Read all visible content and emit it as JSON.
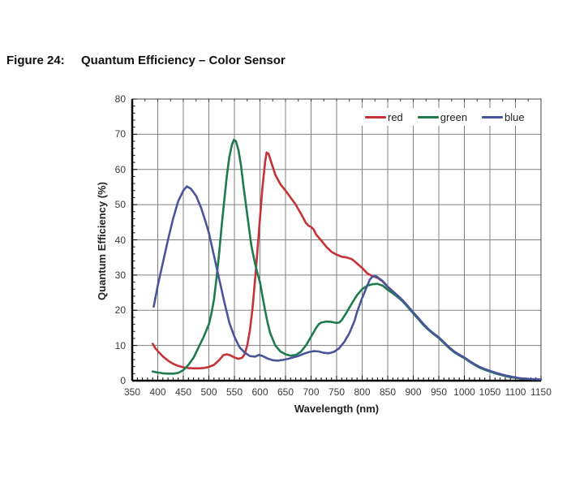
{
  "figure": {
    "label": "Figure 24:",
    "title": "Quantum Efficiency – Color Sensor"
  },
  "chart_data": {
    "type": "line",
    "title": "Quantum Efficiency – Color Sensor",
    "xlabel": "Wavelength (nm)",
    "ylabel": "Quantum Efficiency (%)",
    "xlim": [
      350,
      1150
    ],
    "ylim": [
      0,
      80
    ],
    "x_ticks": [
      350,
      400,
      450,
      500,
      550,
      600,
      650,
      700,
      750,
      800,
      850,
      900,
      950,
      1000,
      1050,
      1100,
      1150
    ],
    "y_ticks": [
      0,
      10,
      20,
      30,
      40,
      50,
      60,
      70,
      80
    ],
    "grid": true,
    "grid_color": "#808080",
    "legend_position": "top-right-inside",
    "series": [
      {
        "name": "red",
        "color": "#c53238",
        "points": [
          [
            390,
            10.5
          ],
          [
            395,
            9.3
          ],
          [
            400,
            8.4
          ],
          [
            410,
            6.9
          ],
          [
            420,
            5.7
          ],
          [
            430,
            4.8
          ],
          [
            440,
            4.2
          ],
          [
            450,
            3.8
          ],
          [
            460,
            3.6
          ],
          [
            470,
            3.5
          ],
          [
            480,
            3.5
          ],
          [
            490,
            3.6
          ],
          [
            500,
            3.9
          ],
          [
            510,
            4.5
          ],
          [
            520,
            5.8
          ],
          [
            528,
            7.2
          ],
          [
            535,
            7.5
          ],
          [
            542,
            7.2
          ],
          [
            550,
            6.6
          ],
          [
            558,
            6.2
          ],
          [
            565,
            6.5
          ],
          [
            570,
            7.5
          ],
          [
            575,
            10
          ],
          [
            580,
            14
          ],
          [
            585,
            20
          ],
          [
            590,
            28
          ],
          [
            595,
            37
          ],
          [
            600,
            46
          ],
          [
            605,
            55
          ],
          [
            610,
            62
          ],
          [
            613,
            64.8
          ],
          [
            617,
            64.4
          ],
          [
            620,
            63
          ],
          [
            630,
            58.5
          ],
          [
            640,
            55.8
          ],
          [
            650,
            54
          ],
          [
            660,
            52
          ],
          [
            670,
            50
          ],
          [
            680,
            47.5
          ],
          [
            690,
            44.8
          ],
          [
            695,
            44
          ],
          [
            700,
            43.7
          ],
          [
            705,
            43
          ],
          [
            710,
            41.5
          ],
          [
            720,
            39.8
          ],
          [
            730,
            38
          ],
          [
            740,
            36.6
          ],
          [
            750,
            35.8
          ],
          [
            760,
            35.2
          ],
          [
            770,
            35
          ],
          [
            780,
            34.5
          ],
          [
            790,
            33.3
          ],
          [
            800,
            32
          ],
          [
            810,
            30.5
          ],
          [
            820,
            29.7
          ],
          [
            830,
            29.2
          ],
          [
            840,
            28.2
          ],
          [
            850,
            26.6
          ],
          [
            860,
            25.3
          ],
          [
            870,
            24
          ],
          [
            880,
            22.6
          ],
          [
            890,
            21
          ],
          [
            900,
            19.3
          ],
          [
            910,
            17.7
          ],
          [
            920,
            16
          ],
          [
            930,
            14.5
          ],
          [
            940,
            13.3
          ],
          [
            950,
            12.2
          ],
          [
            960,
            10.8
          ],
          [
            970,
            9.4
          ],
          [
            980,
            8.2
          ],
          [
            990,
            7.3
          ],
          [
            1000,
            6.5
          ],
          [
            1010,
            5.5
          ],
          [
            1020,
            4.6
          ],
          [
            1030,
            3.8
          ],
          [
            1040,
            3.2
          ],
          [
            1050,
            2.7
          ],
          [
            1060,
            2.2
          ],
          [
            1070,
            1.8
          ],
          [
            1080,
            1.4
          ],
          [
            1090,
            1.1
          ],
          [
            1100,
            0.8
          ],
          [
            1110,
            0.6
          ],
          [
            1120,
            0.5
          ]
        ]
      },
      {
        "name": "green",
        "color": "#1e7b4e",
        "points": [
          [
            390,
            2.6
          ],
          [
            400,
            2.3
          ],
          [
            410,
            2.1
          ],
          [
            420,
            2.0
          ],
          [
            430,
            2.0
          ],
          [
            440,
            2.2
          ],
          [
            450,
            3.0
          ],
          [
            460,
            4.5
          ],
          [
            470,
            6.5
          ],
          [
            480,
            9.5
          ],
          [
            490,
            12.5
          ],
          [
            500,
            16
          ],
          [
            505,
            19
          ],
          [
            510,
            23
          ],
          [
            515,
            29
          ],
          [
            520,
            36
          ],
          [
            525,
            44
          ],
          [
            530,
            51
          ],
          [
            535,
            58
          ],
          [
            540,
            63.5
          ],
          [
            545,
            67
          ],
          [
            549,
            68.4
          ],
          [
            553,
            68
          ],
          [
            558,
            65.5
          ],
          [
            563,
            61
          ],
          [
            568,
            55
          ],
          [
            573,
            49.5
          ],
          [
            578,
            44
          ],
          [
            583,
            38.5
          ],
          [
            590,
            33.5
          ],
          [
            595,
            30.5
          ],
          [
            600,
            28
          ],
          [
            605,
            24
          ],
          [
            610,
            20
          ],
          [
            615,
            16.5
          ],
          [
            620,
            13.5
          ],
          [
            630,
            10
          ],
          [
            640,
            8.3
          ],
          [
            650,
            7.5
          ],
          [
            660,
            7.1
          ],
          [
            670,
            7.3
          ],
          [
            680,
            8.2
          ],
          [
            690,
            10
          ],
          [
            700,
            12.5
          ],
          [
            710,
            15
          ],
          [
            715,
            16
          ],
          [
            720,
            16.5
          ],
          [
            730,
            16.8
          ],
          [
            740,
            16.7
          ],
          [
            750,
            16.4
          ],
          [
            755,
            16.5
          ],
          [
            760,
            17.2
          ],
          [
            770,
            19.5
          ],
          [
            780,
            22
          ],
          [
            790,
            24.3
          ],
          [
            800,
            26
          ],
          [
            810,
            27
          ],
          [
            820,
            27.4
          ],
          [
            830,
            27.5
          ],
          [
            840,
            27
          ],
          [
            850,
            25.8
          ],
          [
            860,
            24.8
          ],
          [
            870,
            23.7
          ],
          [
            880,
            22.4
          ],
          [
            890,
            20.8
          ],
          [
            900,
            19.1
          ],
          [
            910,
            17.5
          ],
          [
            920,
            15.8
          ],
          [
            930,
            14.4
          ],
          [
            940,
            13.2
          ],
          [
            950,
            12.1
          ],
          [
            960,
            10.7
          ],
          [
            970,
            9.3
          ],
          [
            980,
            8.1
          ],
          [
            990,
            7.2
          ],
          [
            1000,
            6.4
          ],
          [
            1010,
            5.4
          ],
          [
            1020,
            4.5
          ],
          [
            1030,
            3.7
          ],
          [
            1040,
            3.1
          ],
          [
            1050,
            2.6
          ],
          [
            1060,
            2.1
          ],
          [
            1070,
            1.7
          ],
          [
            1080,
            1.3
          ],
          [
            1090,
            1.0
          ],
          [
            1100,
            0.8
          ],
          [
            1110,
            0.6
          ],
          [
            1120,
            0.5
          ]
        ]
      },
      {
        "name": "blue",
        "color": "#4a549b",
        "points": [
          [
            392,
            21
          ],
          [
            400,
            27
          ],
          [
            410,
            33.5
          ],
          [
            420,
            40
          ],
          [
            430,
            46
          ],
          [
            440,
            51
          ],
          [
            450,
            54
          ],
          [
            457,
            55.2
          ],
          [
            465,
            54.5
          ],
          [
            475,
            52.5
          ],
          [
            485,
            49
          ],
          [
            495,
            44.5
          ],
          [
            500,
            42
          ],
          [
            510,
            35.5
          ],
          [
            520,
            29
          ],
          [
            530,
            22.5
          ],
          [
            540,
            16.5
          ],
          [
            550,
            12.5
          ],
          [
            560,
            9.5
          ],
          [
            570,
            8
          ],
          [
            580,
            7
          ],
          [
            590,
            6.8
          ],
          [
            598,
            7.3
          ],
          [
            605,
            7
          ],
          [
            615,
            6.3
          ],
          [
            625,
            5.8
          ],
          [
            635,
            5.7
          ],
          [
            645,
            5.9
          ],
          [
            655,
            6.2
          ],
          [
            665,
            6.6
          ],
          [
            675,
            7
          ],
          [
            685,
            7.6
          ],
          [
            695,
            8.1
          ],
          [
            705,
            8.4
          ],
          [
            715,
            8.3
          ],
          [
            725,
            7.9
          ],
          [
            735,
            7.8
          ],
          [
            745,
            8.2
          ],
          [
            755,
            9.2
          ],
          [
            765,
            11
          ],
          [
            775,
            13.5
          ],
          [
            785,
            17
          ],
          [
            790,
            19.5
          ],
          [
            800,
            23.5
          ],
          [
            810,
            27
          ],
          [
            815,
            28.7
          ],
          [
            820,
            29.5
          ],
          [
            825,
            29.8
          ],
          [
            830,
            29.4
          ],
          [
            840,
            28.3
          ],
          [
            850,
            26.7
          ],
          [
            860,
            25.4
          ],
          [
            870,
            24.1
          ],
          [
            880,
            22.7
          ],
          [
            890,
            21.1
          ],
          [
            900,
            19.4
          ],
          [
            910,
            17.8
          ],
          [
            920,
            16.1
          ],
          [
            930,
            14.6
          ],
          [
            940,
            13.4
          ],
          [
            950,
            12.3
          ],
          [
            960,
            10.9
          ],
          [
            970,
            9.5
          ],
          [
            980,
            8.3
          ],
          [
            990,
            7.4
          ],
          [
            1000,
            6.6
          ],
          [
            1010,
            5.6
          ],
          [
            1020,
            4.7
          ],
          [
            1030,
            3.9
          ],
          [
            1040,
            3.3
          ],
          [
            1050,
            2.8
          ],
          [
            1060,
            2.3
          ],
          [
            1070,
            1.9
          ],
          [
            1080,
            1.5
          ],
          [
            1090,
            1.2
          ],
          [
            1100,
            0.9
          ],
          [
            1110,
            0.7
          ],
          [
            1120,
            0.55
          ],
          [
            1130,
            0.45
          ],
          [
            1140,
            0.4
          ],
          [
            1150,
            0.35
          ]
        ]
      }
    ]
  }
}
